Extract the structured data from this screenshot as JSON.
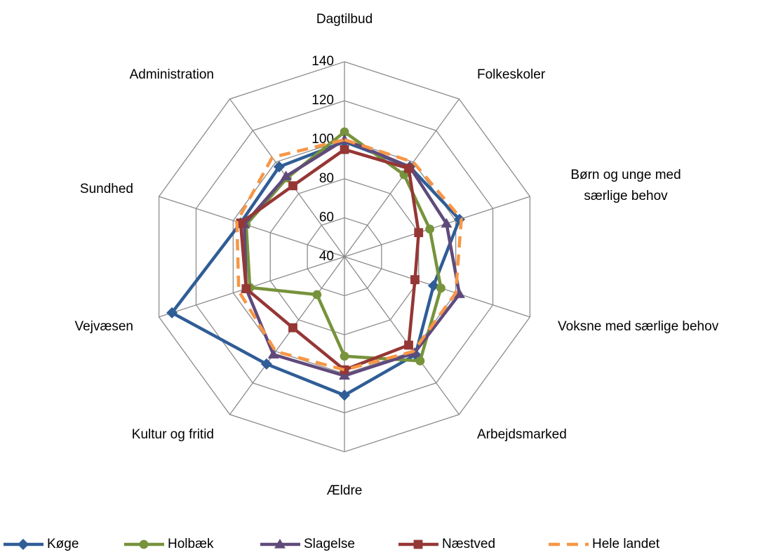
{
  "chart_data": {
    "type": "radar",
    "categories": [
      "Dagtilbud",
      "Folkeskoler",
      "Børn og unge med særlige behov",
      "Voksne med særlige behov",
      "Arbejdsmarked",
      "Ældre",
      "Kultur og fritid",
      "Vejvæsen",
      "Sundhed",
      "Administration"
    ],
    "ylim": [
      40,
      140
    ],
    "yticks": [
      40,
      60,
      80,
      100,
      120,
      140
    ],
    "grid": true,
    "legend": "bottom",
    "series": [
      {
        "name": "Køge",
        "color": "#2f5d96",
        "marker": "diamond",
        "values": [
          99,
          97,
          102,
          88,
          102,
          111,
          108,
          133,
          96,
          97
        ]
      },
      {
        "name": "Holbæk",
        "color": "#77933c",
        "marker": "circle",
        "values": [
          104,
          92,
          86,
          92,
          106,
          91,
          64,
          91,
          93,
          90
        ]
      },
      {
        "name": "Slagelse",
        "color": "#604a7b",
        "marker": "triangle",
        "values": [
          100,
          97,
          95,
          102,
          101,
          101,
          102,
          93,
          94,
          91
        ]
      },
      {
        "name": "Næstved",
        "color": "#953735",
        "marker": "square",
        "values": [
          95,
          96,
          80,
          78,
          96,
          98,
          85,
          93,
          96,
          85
        ]
      },
      {
        "name": "Hele landet",
        "color": "#f79646",
        "dashed": true,
        "values": [
          100,
          100,
          103,
          100,
          100,
          98,
          100,
          97,
          98,
          103
        ]
      }
    ]
  }
}
